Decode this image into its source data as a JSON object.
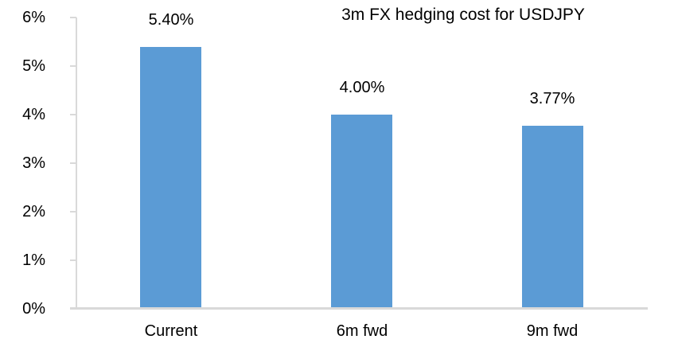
{
  "chart_data": {
    "type": "bar",
    "title": "3m FX hedging cost for USDJPY",
    "categories": [
      "Current",
      "6m fwd",
      "9m fwd"
    ],
    "values": [
      5.4,
      4.0,
      3.77
    ],
    "value_labels": [
      "5.40%",
      "4.00%",
      "3.77%"
    ],
    "xlabel": "",
    "ylabel": "",
    "ylim": [
      0,
      6
    ],
    "yticks": [
      {
        "value": 0,
        "label": "0%"
      },
      {
        "value": 1,
        "label": "1%"
      },
      {
        "value": 2,
        "label": "2%"
      },
      {
        "value": 3,
        "label": "3%"
      },
      {
        "value": 4,
        "label": "4%"
      },
      {
        "value": 5,
        "label": "5%"
      },
      {
        "value": 6,
        "label": "6%"
      }
    ],
    "grid": "off",
    "legend": "none",
    "bar_color": "#5b9bd5",
    "axis_color": "#d9d9d9",
    "text_color": "#000000"
  }
}
